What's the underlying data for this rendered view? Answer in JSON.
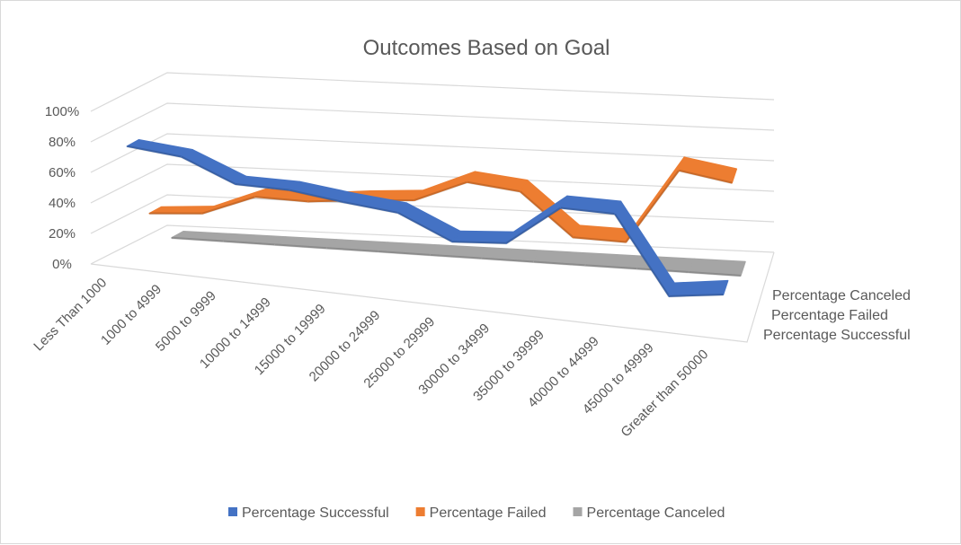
{
  "chart_data": {
    "type": "line",
    "style": "3d",
    "title": "Outcomes Based on Goal",
    "categories": [
      "Less Than 1000",
      "1000 to 4999",
      "5000 to 9999",
      "10000 to 14999",
      "15000 to 19999",
      "20000 to 24999",
      "25000 to 29999",
      "30000 to 34999",
      "35000 to 39999",
      "40000 to 44999",
      "45000 to 49999",
      "Greater than 50000"
    ],
    "ylim": [
      0,
      1
    ],
    "yticks": [
      "0%",
      "20%",
      "40%",
      "60%",
      "80%",
      "100%"
    ],
    "yticks_values": [
      0,
      0.2,
      0.4,
      0.6,
      0.8,
      1.0
    ],
    "depth_labels": [
      "Percentage Canceled",
      "Percentage Failed",
      "Percentage Successful"
    ],
    "grid": true,
    "legend_position": "bottom",
    "series": [
      {
        "name": "Percentage Successful",
        "color": "#4472c4",
        "values": [
          0.76,
          0.73,
          0.59,
          0.59,
          0.55,
          0.52,
          0.37,
          0.4,
          0.67,
          0.67,
          0.17,
          0.22
        ]
      },
      {
        "name": "Percentage Failed",
        "color": "#ed7d31",
        "values": [
          0.24,
          0.27,
          0.41,
          0.41,
          0.45,
          0.48,
          0.63,
          0.6,
          0.33,
          0.33,
          0.83,
          0.78
        ]
      },
      {
        "name": "Percentage Canceled",
        "color": "#a5a5a5",
        "values": [
          0,
          0,
          0,
          0,
          0,
          0,
          0,
          0,
          0,
          0,
          0,
          0
        ]
      }
    ]
  }
}
